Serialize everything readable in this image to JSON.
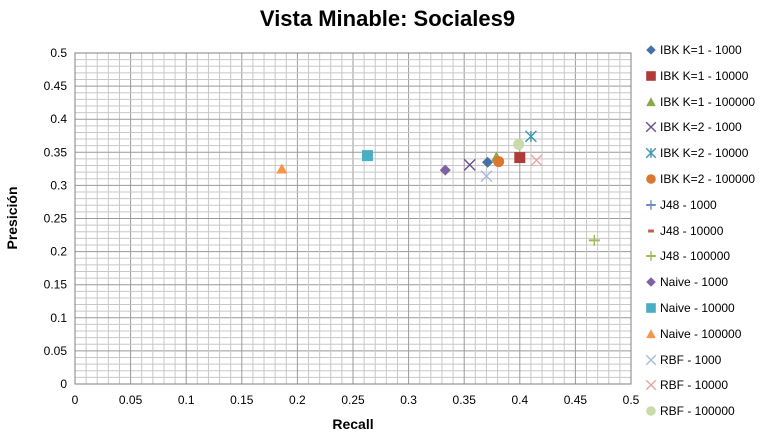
{
  "chart_data": {
    "type": "scatter",
    "title": "Vista Minable: Sociales9",
    "xlabel": "Recall",
    "ylabel": "Presición",
    "xlim": [
      0,
      0.5
    ],
    "ylim": [
      0,
      0.5
    ],
    "xticks": [
      "0",
      "0.05",
      "0.1",
      "0.15",
      "0.2",
      "0.25",
      "0.3",
      "0.35",
      "0.4",
      "0.45",
      "0.5"
    ],
    "yticks": [
      "0",
      "0.05",
      "0.1",
      "0.15",
      "0.2",
      "0.25",
      "0.3",
      "0.35",
      "0.4",
      "0.45",
      "0.5"
    ],
    "grid": true,
    "legend_position": "right",
    "series": [
      {
        "name": "IBK K=1 - 1000",
        "marker": "diamond",
        "color": "#4472A8",
        "x": 0.371,
        "y": 0.335
      },
      {
        "name": "IBK K=1 - 10000",
        "marker": "square",
        "color": "#B03C3A",
        "x": 0.4,
        "y": 0.342
      },
      {
        "name": "IBK K=1 - 100000",
        "marker": "triangle",
        "color": "#8AAA4A",
        "x": 0.379,
        "y": 0.343
      },
      {
        "name": "IBK K=2 - 1000",
        "marker": "x",
        "color": "#6A4F8A",
        "x": 0.355,
        "y": 0.331
      },
      {
        "name": "IBK K=2 - 10000",
        "marker": "star",
        "color": "#3D97AC",
        "x": 0.41,
        "y": 0.374
      },
      {
        "name": "IBK K=2 - 100000",
        "marker": "circle",
        "color": "#D9782E",
        "x": 0.381,
        "y": 0.336
      },
      {
        "name": "J48 - 1000",
        "marker": "plus",
        "color": "#6C8EBE",
        "x": null,
        "y": null
      },
      {
        "name": "J48 - 10000",
        "marker": "dash",
        "color": "#C55A57",
        "x": null,
        "y": null
      },
      {
        "name": "J48 - 100000",
        "marker": "plus",
        "color": "#9BBB59",
        "x": 0.467,
        "y": 0.217
      },
      {
        "name": "Naive - 1000",
        "marker": "diamond",
        "color": "#7E62A1",
        "x": 0.333,
        "y": 0.323
      },
      {
        "name": "Naive - 10000",
        "marker": "square",
        "color": "#4BACC6",
        "x": 0.263,
        "y": 0.345
      },
      {
        "name": "Naive - 100000",
        "marker": "triangle",
        "color": "#F79646",
        "x": 0.186,
        "y": 0.325
      },
      {
        "name": "RBF - 1000",
        "marker": "x",
        "color": "#A5BCE0",
        "x": 0.37,
        "y": 0.314
      },
      {
        "name": "RBF - 10000",
        "marker": "x",
        "color": "#E6A5A3",
        "x": 0.415,
        "y": 0.338
      },
      {
        "name": "RBF - 100000",
        "marker": "circle",
        "color": "#C8DBA8",
        "x": 0.399,
        "y": 0.362
      }
    ]
  }
}
